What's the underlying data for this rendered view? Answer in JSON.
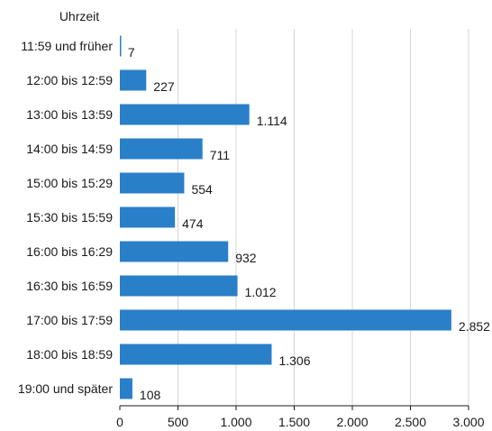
{
  "chart_data": {
    "type": "bar",
    "orientation": "horizontal",
    "ylabel": "Uhrzeit",
    "xlabel": "",
    "categories": [
      "11:59 und früher",
      "12:00 bis 12:59",
      "13:00 bis 13:59",
      "14:00 bis 14:59",
      "15:00 bis 15:29",
      "15:30 bis 15:59",
      "16:00 bis 16:29",
      "16:30 bis 16:59",
      "17:00 bis 17:59",
      "18:00 bis 18:59",
      "19:00 und später"
    ],
    "values": [
      7,
      227,
      1114,
      711,
      554,
      474,
      932,
      1012,
      2852,
      1306,
      108
    ],
    "value_labels": [
      "7",
      "227",
      "1.114",
      "711",
      "554",
      "474",
      "932",
      "1.012",
      "2.852",
      "1.306",
      "108"
    ],
    "xlim": [
      0,
      3000
    ],
    "xticks": [
      0,
      500,
      1000,
      1500,
      2000,
      2500,
      3000
    ],
    "xtick_labels": [
      "0",
      "500",
      "1.000",
      "1.500",
      "2.000",
      "2.500",
      "3.000"
    ],
    "grid": true,
    "colors": {
      "bar": "#2a7fc9",
      "grid": "#d4d4d4",
      "axis": "#1a1a1a"
    }
  }
}
